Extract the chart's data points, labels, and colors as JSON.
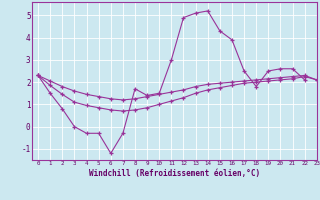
{
  "title": "",
  "xlabel": "Windchill (Refroidissement éolien,°C)",
  "ylabel": "",
  "background_color": "#cce8f0",
  "line_color": "#993399",
  "xlim": [
    -0.5,
    23
  ],
  "ylim": [
    -1.5,
    5.6
  ],
  "yticks": [
    -1,
    0,
    1,
    2,
    3,
    4,
    5
  ],
  "xticks": [
    0,
    1,
    2,
    3,
    4,
    5,
    6,
    7,
    8,
    9,
    10,
    11,
    12,
    13,
    14,
    15,
    16,
    17,
    18,
    19,
    20,
    21,
    22,
    23
  ],
  "series": [
    [
      2.3,
      1.5,
      0.8,
      0.0,
      -0.3,
      -0.3,
      -1.2,
      -0.3,
      1.7,
      1.4,
      1.5,
      3.0,
      4.9,
      5.1,
      5.2,
      4.3,
      3.9,
      2.5,
      1.8,
      2.5,
      2.6,
      2.6,
      2.1,
      null
    ],
    [
      2.3,
      2.05,
      1.8,
      1.6,
      1.45,
      1.35,
      1.25,
      1.2,
      1.25,
      1.35,
      1.45,
      1.55,
      1.65,
      1.8,
      1.9,
      1.95,
      2.0,
      2.05,
      2.1,
      2.15,
      2.2,
      2.25,
      2.3,
      2.1
    ],
    [
      2.3,
      1.85,
      1.45,
      1.1,
      0.95,
      0.85,
      0.75,
      0.7,
      0.75,
      0.85,
      1.0,
      1.15,
      1.3,
      1.5,
      1.65,
      1.75,
      1.85,
      1.95,
      2.0,
      2.05,
      2.1,
      2.15,
      2.25,
      2.1
    ]
  ]
}
